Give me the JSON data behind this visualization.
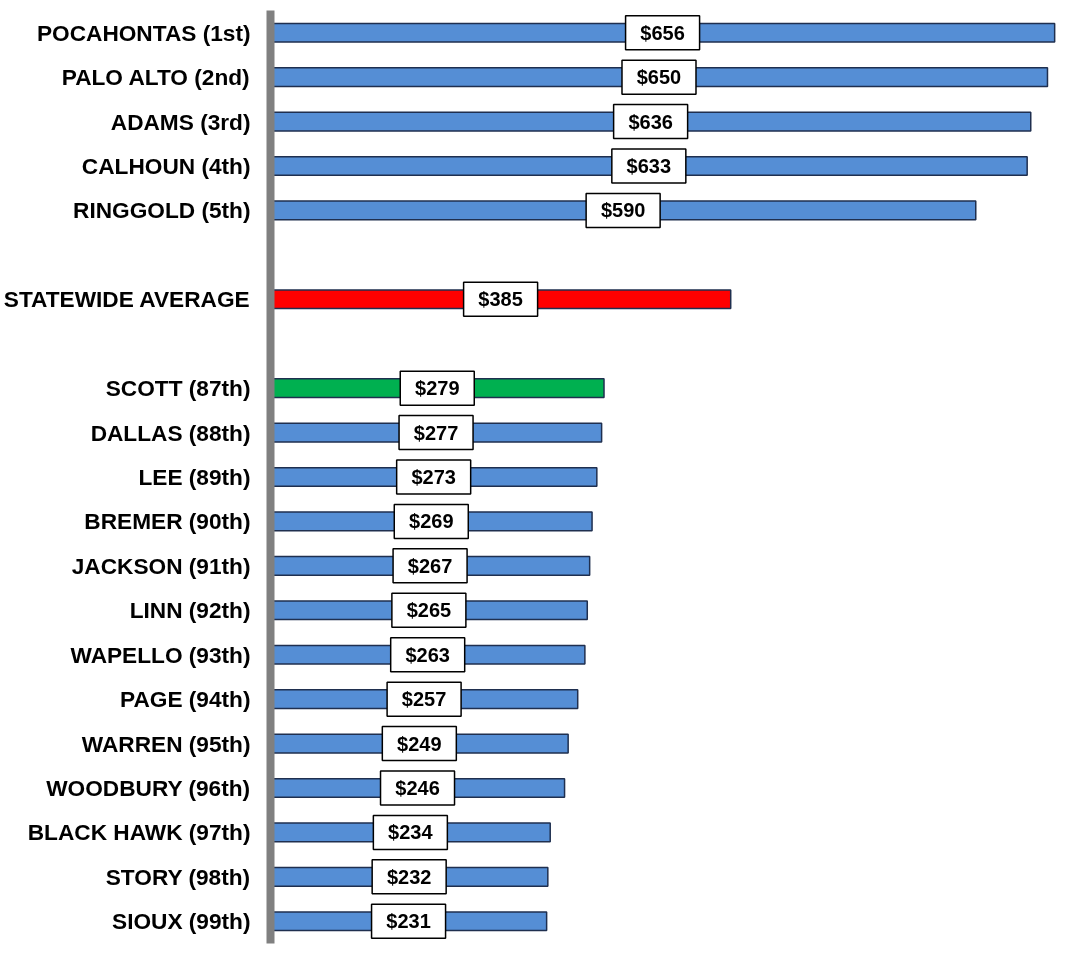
{
  "chart_data": {
    "type": "bar",
    "orientation": "horizontal",
    "categories": [
      "POCAHONTAS (1st)",
      "PALO ALTO (2nd)",
      "ADAMS (3rd)",
      "CALHOUN (4th)",
      "RINGGOLD (5th)",
      null,
      "STATEWIDE AVERAGE",
      null,
      "SCOTT (87th)",
      "DALLAS (88th)",
      "LEE (89th)",
      "BREMER (90th)",
      "JACKSON (91th)",
      "LINN (92th)",
      "WAPELLO (93th)",
      "PAGE (94th)",
      "WARREN (95th)",
      "WOODBURY (96th)",
      "BLACK HAWK (97th)",
      "STORY (98th)",
      "SIOUX (99th)"
    ],
    "values": [
      656,
      650,
      636,
      633,
      590,
      null,
      385,
      null,
      279,
      277,
      273,
      269,
      267,
      265,
      263,
      257,
      249,
      246,
      234,
      232,
      231
    ],
    "value_labels": [
      "$656",
      "$650",
      "$636",
      "$633",
      "$590",
      null,
      "$385",
      null,
      "$279",
      "$277",
      "$273",
      "$269",
      "$267",
      "$265",
      "$263",
      "$257",
      "$249",
      "$246",
      "$234",
      "$232",
      "$231"
    ],
    "colors": [
      "#558ed5",
      "#558ed5",
      "#558ed5",
      "#558ed5",
      "#558ed5",
      null,
      "#ff0000",
      null,
      "#00b050",
      "#558ed5",
      "#558ed5",
      "#558ed5",
      "#558ed5",
      "#558ed5",
      "#558ed5",
      "#558ed5",
      "#558ed5",
      "#558ed5",
      "#558ed5",
      "#558ed5",
      "#558ed5"
    ],
    "grid": false
  }
}
